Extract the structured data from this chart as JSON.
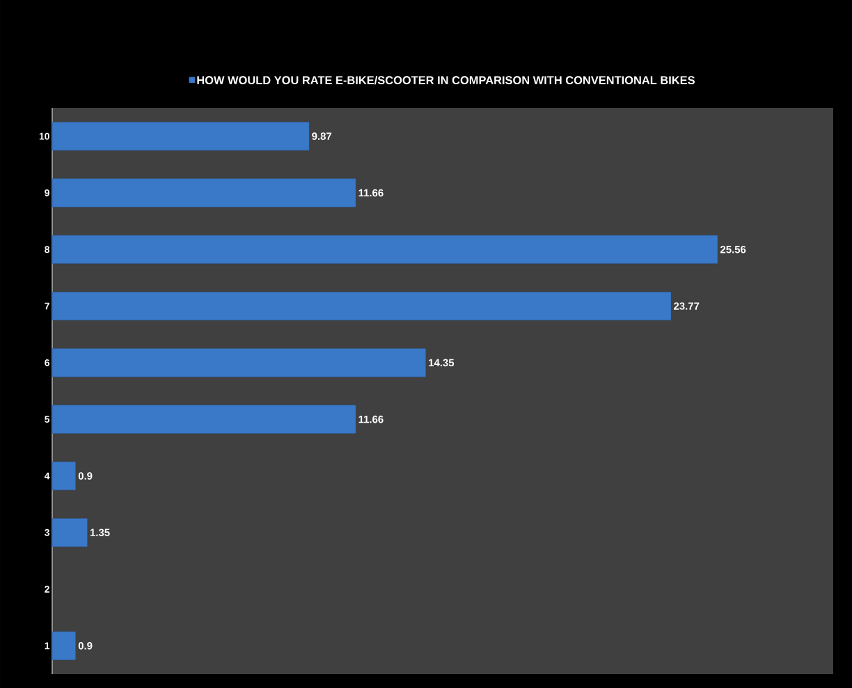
{
  "chart_data": {
    "type": "bar",
    "orientation": "horizontal",
    "categories": [
      "10",
      "9",
      "8",
      "7",
      "6",
      "5",
      "4",
      "3",
      "2",
      "1"
    ],
    "series": [
      {
        "name": "HOW WOULD YOU RATE E-BIKE/SCOOTER IN COMPARISON WITH CONVENTIONAL BIKES",
        "color": "#3a78c8",
        "values": [
          9.87,
          11.66,
          25.56,
          23.77,
          14.35,
          11.66,
          0.9,
          1.35,
          null,
          0.9
        ]
      }
    ],
    "xlim": [
      0,
      30
    ],
    "data_labels": true,
    "legend": "top",
    "grid": false,
    "tick_labels": "y"
  }
}
